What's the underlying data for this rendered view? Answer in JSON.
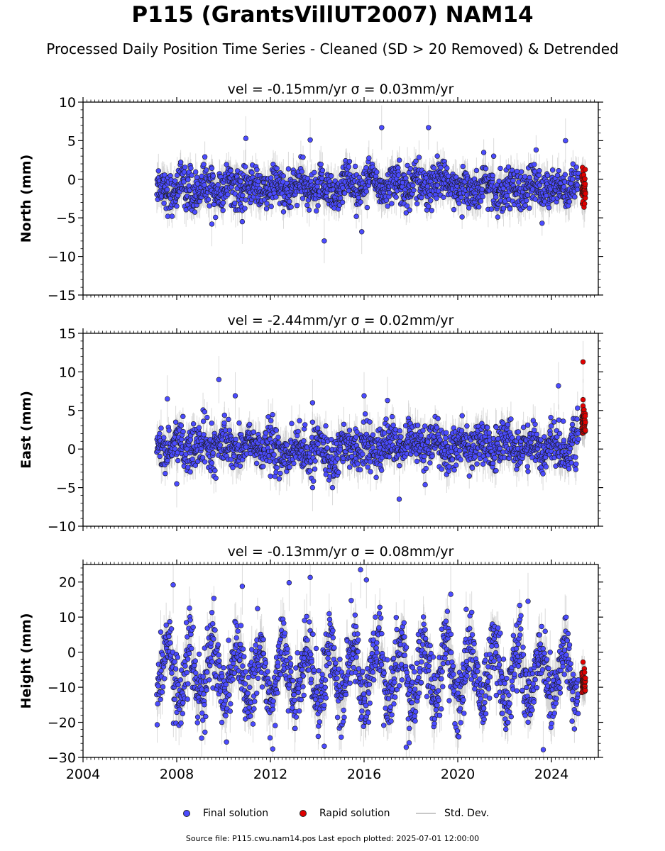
{
  "header": {
    "title": "P115 (GrantsVillUT2007) NAM14",
    "subtitle": "Processed Daily Position Time Series - Cleaned (SD > 20 Removed) & Detrended"
  },
  "legend": {
    "final_label": "Final solution",
    "rapid_label": "Rapid solution",
    "stddev_label": "Std. Dev."
  },
  "footer": {
    "source_note": "Source file: P115.cwu.nam14.pos  Last epoch plotted: 2025-07-01 12:00:00"
  },
  "colors": {
    "final": "#4b4bff",
    "rapid": "#e00000",
    "stddev": "#bdbdbd",
    "marker_edge": "#1a1a1a"
  },
  "chart_data": [
    {
      "type": "scatter",
      "title": "vel = -0.15mm/yr   σ = 0.03mm/yr",
      "ylabel": "North (mm)",
      "xlim": [
        2004,
        2026
      ],
      "ylim": [
        -15,
        10
      ],
      "yticks": [
        -15,
        -10,
        -5,
        0,
        5,
        10
      ],
      "xticks": [
        2004,
        2008,
        2012,
        2016,
        2020,
        2024
      ],
      "series": [
        {
          "name": "Final solution",
          "x_range": [
            2007.15,
            2025.15
          ],
          "mean": -1.2,
          "spread": 1.3,
          "err": 1.6,
          "outliers": [
            [
              2010.95,
              5.3
            ],
            [
              2013.7,
              5.1
            ],
            [
              2016.75,
              6.7
            ],
            [
              2018.75,
              6.7
            ],
            [
              2024.6,
              5.0
            ],
            [
              2014.3,
              -8.0
            ],
            [
              2015.9,
              -6.8
            ],
            [
              2009.5,
              -5.8
            ],
            [
              2010.8,
              -5.5
            ]
          ]
        },
        {
          "name": "Rapid solution",
          "x_range": [
            2025.3,
            2025.45
          ],
          "mean": -1.5,
          "spread": 1.2,
          "err": 1.8
        }
      ]
    },
    {
      "type": "scatter",
      "title": "vel = -2.44mm/yr   σ = 0.02mm/yr",
      "ylabel": "East (mm)",
      "xlim": [
        2004,
        2026
      ],
      "ylim": [
        -10,
        15
      ],
      "yticks": [
        -10,
        -5,
        0,
        5,
        10,
        15
      ],
      "xticks": [
        2004,
        2008,
        2012,
        2016,
        2020,
        2024
      ],
      "series": [
        {
          "name": "Final solution",
          "x_range": [
            2007.15,
            2025.15
          ],
          "mean": 0.4,
          "spread": 1.4,
          "err": 1.7,
          "outliers": [
            [
              2009.8,
              9.0
            ],
            [
              2010.5,
              6.9
            ],
            [
              2024.3,
              8.2
            ],
            [
              2007.6,
              6.5
            ],
            [
              2013.8,
              6.0
            ],
            [
              2017.0,
              6.3
            ],
            [
              2017.5,
              -6.5
            ],
            [
              2008.0,
              -4.5
            ],
            [
              2013.8,
              -5.0
            ],
            [
              2016.0,
              6.9
            ]
          ]
        },
        {
          "name": "Rapid solution",
          "x_range": [
            2025.3,
            2025.45
          ],
          "mean": 3.3,
          "spread": 0.9,
          "err": 1.5,
          "outliers": [
            [
              2025.35,
              11.3
            ],
            [
              2025.35,
              6.4
            ]
          ]
        }
      ]
    },
    {
      "type": "scatter",
      "title": "vel = -0.13mm/yr   σ = 0.08mm/yr",
      "ylabel": "Height (mm)",
      "xlim": [
        2004,
        2026
      ],
      "ylim": [
        -30,
        25
      ],
      "yticks": [
        -30,
        -20,
        -10,
        0,
        10,
        20
      ],
      "xticks": [
        2004,
        2008,
        2012,
        2016,
        2020,
        2024
      ],
      "series": [
        {
          "name": "Final solution",
          "x_range": [
            2007.15,
            2025.15
          ],
          "mean": -6.0,
          "spread": 6.5,
          "err": 4.5,
          "outliers": [
            [
              2015.85,
              23.5
            ],
            [
              2013.7,
              21.3
            ],
            [
              2007.85,
              19.2
            ],
            [
              2010.8,
              18.8
            ],
            [
              2012.8,
              19.8
            ],
            [
              2016.1,
              20.6
            ],
            [
              2019.7,
              16.5
            ],
            [
              2023.0,
              14.5
            ],
            [
              2014.3,
              -26.8
            ],
            [
              2012.1,
              -27.6
            ],
            [
              2017.8,
              -27.1
            ],
            [
              2023.65,
              -27.8
            ]
          ]
        },
        {
          "name": "Rapid solution",
          "x_range": [
            2025.3,
            2025.45
          ],
          "mean": -8.0,
          "spread": 3.0,
          "err": 3.5
        }
      ]
    }
  ]
}
